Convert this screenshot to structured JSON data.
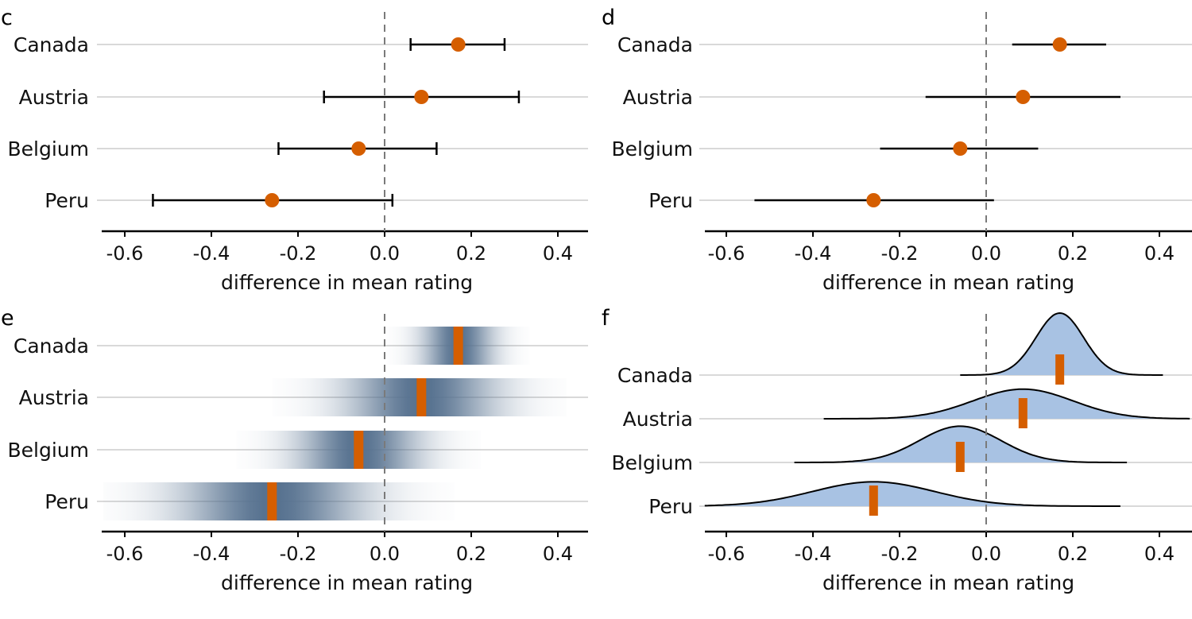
{
  "chart_data": [
    {
      "panel": "c",
      "type": "scatter",
      "style": "point-with-capped-errorbars",
      "categories": [
        "Canada",
        "Austria",
        "Belgium",
        "Peru"
      ],
      "estimate": [
        0.17,
        0.085,
        -0.06,
        -0.26
      ],
      "ci_low": [
        0.06,
        -0.14,
        -0.245,
        -0.535
      ],
      "ci_high": [
        0.277,
        0.31,
        0.12,
        0.018
      ],
      "xlabel": "difference in mean rating",
      "xlim": [
        -0.65,
        0.47
      ],
      "xticks": [
        "-0.6",
        "-0.4",
        "-0.2",
        "0.0",
        "0.2",
        "0.4"
      ],
      "reference_line": 0.0,
      "grid": "horizontal"
    },
    {
      "panel": "d",
      "type": "scatter",
      "style": "point-with-errorbars-no-caps",
      "categories": [
        "Canada",
        "Austria",
        "Belgium",
        "Peru"
      ],
      "estimate": [
        0.17,
        0.085,
        -0.06,
        -0.26
      ],
      "ci_low": [
        0.06,
        -0.14,
        -0.245,
        -0.535
      ],
      "ci_high": [
        0.277,
        0.31,
        0.12,
        0.018
      ],
      "xlabel": "difference in mean rating",
      "xlim": [
        -0.65,
        0.47
      ],
      "xticks": [
        "-0.6",
        "-0.4",
        "-0.2",
        "0.0",
        "0.2",
        "0.4"
      ],
      "reference_line": 0.0,
      "grid": "horizontal"
    },
    {
      "panel": "e",
      "type": "heatmap",
      "style": "graded-confidence-strips",
      "categories": [
        "Canada",
        "Austria",
        "Belgium",
        "Peru"
      ],
      "estimate": [
        0.17,
        0.085,
        -0.06,
        -0.26
      ],
      "sd": [
        0.055,
        0.115,
        0.094,
        0.14
      ],
      "xlabel": "difference in mean rating",
      "xlim": [
        -0.65,
        0.47
      ],
      "xticks": [
        "-0.6",
        "-0.4",
        "-0.2",
        "0.0",
        "0.2",
        "0.4"
      ],
      "reference_line": 0.0,
      "grid": "horizontal"
    },
    {
      "panel": "f",
      "type": "area",
      "style": "ridgeline-densities",
      "categories": [
        "Canada",
        "Austria",
        "Belgium",
        "Peru"
      ],
      "estimate": [
        0.17,
        0.085,
        -0.06,
        -0.26
      ],
      "sd": [
        0.055,
        0.115,
        0.094,
        0.14
      ],
      "range_low": [
        -0.06,
        -0.375,
        -0.443,
        -0.65
      ],
      "range_high": [
        0.408,
        0.47,
        0.325,
        0.31
      ],
      "xlabel": "difference in mean rating",
      "xlim": [
        -0.65,
        0.47
      ],
      "xticks": [
        "-0.6",
        "-0.4",
        "-0.2",
        "0.0",
        "0.2",
        "0.4"
      ],
      "reference_line": 0.0,
      "grid": "horizontal"
    }
  ],
  "colors": {
    "point": "#d55e00",
    "errorbar": "#000000",
    "gridline": "#d9d9d9",
    "reference_line": "#7a7a7a",
    "strip_dark": "#56718f",
    "density_fill": "#a8c2e3",
    "density_line": "#000000"
  },
  "labels": {
    "c": "c",
    "d": "d",
    "e": "e",
    "f": "f"
  }
}
